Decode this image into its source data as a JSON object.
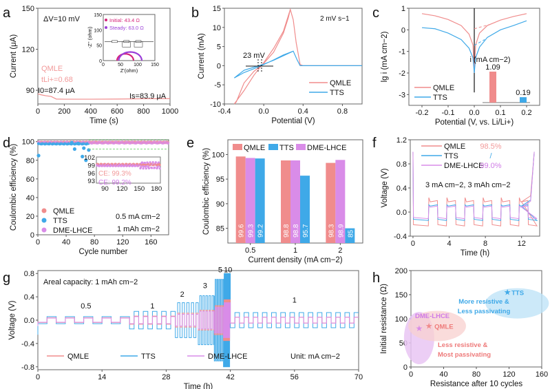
{
  "colors": {
    "qmle": "#f08c8c",
    "tts": "#3fa9e8",
    "dme": "#d98ce8",
    "qmle_text": "#f29a9a",
    "dme_text": "#cf7ae6",
    "axis": "#555555",
    "inset_initial": "#d6247a",
    "inset_steady": "#9b3fd8"
  },
  "chart_data": [
    {
      "panel": "a",
      "type": "line",
      "xlabel": "Time (s)",
      "ylabel": "Current (μA)",
      "xlim": [
        0,
        1000
      ],
      "ylim": [
        80,
        150
      ],
      "xticks": [
        0,
        200,
        400,
        600,
        800,
        1000
      ],
      "yticks": [
        90,
        120,
        150
      ],
      "annotations": [
        "ΔV=10 mV",
        "QMLE",
        "tLi+=0.68",
        "I0=87.4 μA",
        "Is=83.9 μA"
      ],
      "series": [
        {
          "name": "QMLE",
          "x": [
            0,
            20,
            60,
            100,
            140,
            200,
            400,
            600,
            800,
            1000
          ],
          "y": [
            87.4,
            86.8,
            86.0,
            85.5,
            83.6,
            83.5,
            83.5,
            83.6,
            83.8,
            83.9
          ]
        }
      ],
      "inset": {
        "xlabel": "Z'(ohm)",
        "ylabel": "-Z'' (ohm)",
        "xlim": [
          0,
          150
        ],
        "ylim": [
          0,
          150
        ],
        "xticks": [
          0,
          50,
          100,
          150
        ],
        "yticks": [
          0,
          50,
          100,
          150
        ],
        "legend": [
          "Initial: 43.4 Ω",
          "Steady: 63.0 Ω"
        ],
        "circuit_labels": [
          "Rs",
          "Rsei",
          "CPE1",
          "Rct",
          "CPE2",
          "Wo"
        ],
        "series": [
          {
            "name": "Initial",
            "start": 40,
            "end": 88,
            "peak": 22
          },
          {
            "name": "Steady",
            "start": 45,
            "end": 112,
            "peak": 28
          }
        ]
      }
    },
    {
      "panel": "b",
      "type": "line",
      "xlabel": "Potential (V)",
      "ylabel": "Current (mA)",
      "xlim": [
        -0.4,
        1.0
      ],
      "ylim": [
        -10,
        15
      ],
      "xticks": [
        -0.4,
        0.0,
        0.4,
        0.8
      ],
      "yticks": [
        -10,
        -5,
        0,
        5,
        10,
        15
      ],
      "annotations": [
        "2 mV s−1",
        "23 mV"
      ],
      "legend_position": "bottom-right",
      "series": [
        {
          "name": "QMLE",
          "x": [
            1.0,
            0.4,
            0.37,
            0.33,
            0.3,
            0.27,
            0.2,
            0.1,
            0.0,
            -0.1,
            -0.2,
            -0.3,
            -0.28,
            -0.2,
            -0.1,
            0.0,
            0.1,
            0.2,
            0.25,
            0.27
          ],
          "y": [
            0,
            0,
            0.3,
            6,
            12,
            14.7,
            9,
            4.5,
            0.8,
            -2.5,
            -6.5,
            -10,
            -9.5,
            -4.5,
            -1.5,
            0.6,
            3.5,
            8.5,
            12.5,
            14.7
          ]
        },
        {
          "name": "TTS",
          "x": [
            1.0,
            0.37,
            0.34,
            0.3,
            0.2,
            0.1,
            0.0,
            -0.1,
            -0.2,
            -0.3,
            -0.2,
            -0.1,
            0.0,
            0.1,
            0.2,
            0.3
          ],
          "y": [
            0,
            0,
            1.5,
            3.8,
            2.8,
            1.5,
            0.3,
            -0.8,
            -1.8,
            -3.2,
            -1.2,
            -0.4,
            0.4,
            1.4,
            2.6,
            3.8
          ]
        }
      ]
    },
    {
      "panel": "c",
      "type": "line",
      "xlabel": "Potential (V, vs. Li/Li+)",
      "ylabel": "lg i (mA cm−2)",
      "xlim": [
        -0.25,
        0.25
      ],
      "ylim": [
        -3.5,
        1
      ],
      "xticks": [
        -0.2,
        -0.1,
        0.0,
        0.1,
        0.2
      ],
      "yticks": [
        -3,
        -2,
        -1,
        0,
        1
      ],
      "legend_position": "bottom-left",
      "series": [
        {
          "name": "QMLE",
          "x": [
            -0.2,
            -0.15,
            -0.1,
            -0.05,
            -0.02,
            -0.005,
            0,
            0.005,
            0.02,
            0.05,
            0.1,
            0.15,
            0.2
          ],
          "y": [
            0.75,
            0.65,
            0.48,
            0.2,
            -0.2,
            -0.7,
            -2.0,
            -0.7,
            -0.15,
            0.2,
            0.45,
            0.62,
            0.75
          ]
        },
        {
          "name": "TTS",
          "x": [
            -0.2,
            -0.15,
            -0.1,
            -0.05,
            -0.02,
            -0.005,
            0,
            0.005,
            0.02,
            0.05,
            0.1,
            0.15,
            0.2
          ],
          "y": [
            0.1,
            0.05,
            -0.15,
            -0.45,
            -0.85,
            -1.3,
            -2.0,
            -1.3,
            -0.8,
            -0.35,
            0.0,
            0.2,
            0.42
          ]
        }
      ],
      "inset_bar": {
        "title": "i (mA cm−2)",
        "categories": [
          "QMLE",
          "TTS"
        ],
        "values": [
          1.09,
          0.19
        ],
        "value_labels": [
          "1.09",
          "0.19"
        ]
      }
    },
    {
      "panel": "d",
      "type": "scatter",
      "xlabel": "Cycle number",
      "ylabel": "Coulombic efficiency (%)",
      "xlim": [
        0,
        185
      ],
      "ylim": [
        0,
        102
      ],
      "xticks": [
        0,
        40,
        80,
        120,
        160
      ],
      "yticks": [
        0,
        20,
        40,
        60,
        80,
        100
      ],
      "annotations": [
        "0.5 mA cm−2",
        "1 mAh cm−2"
      ],
      "legend": [
        "QMLE",
        "TTS",
        "DME-LHCE"
      ],
      "series": [
        {
          "name": "QMLE",
          "summary": "≈99% through 185 cycles"
        },
        {
          "name": "TTS",
          "x": [
            1,
            48,
            52,
            57,
            63,
            65,
            68,
            72
          ],
          "y": [
            85,
            99,
            92,
            98,
            84,
            93,
            80,
            91
          ],
          "summary": "≈98% until ~72 cycles"
        },
        {
          "name": "DME-LHCE",
          "summary": "≈99% through 185 cycles"
        }
      ],
      "inset": {
        "xticks": [
          90,
          120,
          150,
          180
        ],
        "yticks": [
          93,
          96,
          99,
          102
        ],
        "labels": [
          "CE: 99.3%",
          "CE: 99.2%"
        ]
      }
    },
    {
      "panel": "e",
      "type": "bar",
      "xlabel": "Current density (mA cm−2)",
      "ylabel": "Coulombic efficiency (%)",
      "categories": [
        "0.5",
        "1",
        "2"
      ],
      "ylim": [
        82,
        103
      ],
      "yticks": [
        85,
        90,
        95,
        100
      ],
      "legend_position": "top",
      "series": [
        {
          "name": "QMLE",
          "values": [
            99.6,
            98.8,
            98.3
          ]
        },
        {
          "name": "DME-LHCE",
          "values": [
            99.3,
            98.8,
            98.9
          ]
        },
        {
          "name": "TTS",
          "values": [
            99.2,
            95.7,
            85
          ]
        }
      ],
      "legend": [
        "QMLE",
        "TTS",
        "DME-LHCE"
      ]
    },
    {
      "panel": "f",
      "type": "line",
      "xlabel": "Time  (h)",
      "ylabel": "Voltage (V)",
      "xlim": [
        -0.3,
        14
      ],
      "ylim": [
        -0.4,
        1.2
      ],
      "xticks": [
        0,
        4,
        8,
        12
      ],
      "yticks": [
        -0.4,
        0.0,
        0.4,
        0.8,
        1.2
      ],
      "annotations": [
        "3 mA cm−2, 3 mAh cm−2"
      ],
      "legend": [
        {
          "name": "QMLE",
          "ce": "98.5%"
        },
        {
          "name": "TTS",
          "ce": "/"
        },
        {
          "name": "DME-LHCE",
          "ce": "99.0%"
        }
      ],
      "series": [
        {
          "name": "QMLE",
          "plating": -0.21,
          "stripping": 0.17
        },
        {
          "name": "TTS",
          "plating": -0.12,
          "stripping": 0.1
        },
        {
          "name": "DME-LHCE",
          "plating": -0.09,
          "stripping": 0.08
        }
      ]
    },
    {
      "panel": "g",
      "type": "line",
      "xlabel": "Time (h)",
      "ylabel": "Voltage (V)",
      "xlim": [
        0,
        70
      ],
      "ylim": [
        -0.85,
        0.85
      ],
      "xticks": [
        0,
        14,
        28,
        42,
        56,
        70
      ],
      "yticks": [
        -0.8,
        -0.4,
        0.0,
        0.4,
        0.8
      ],
      "annotations": [
        "Areal capacity: 1 mAh cm−2",
        "Unit: mA cm−2"
      ],
      "rate_labels": [
        {
          "text": "0.5",
          "x": 10.5
        },
        {
          "text": "1",
          "x": 25
        },
        {
          "text": "2",
          "x": 31.5
        },
        {
          "text": "3",
          "x": 36.5
        },
        {
          "text": "5",
          "x": 39.8
        },
        {
          "text": "10",
          "x": 41.5
        },
        {
          "text": "1",
          "x": 56
        }
      ],
      "legend": [
        "QMLE",
        "TTS",
        "DME-LHCE"
      ],
      "segments": [
        {
          "rate": "0.5",
          "t": [
            0,
            20
          ],
          "amp": {
            "QMLE": 0.04,
            "TTS": 0.06,
            "DME-LHCE": 0.035
          }
        },
        {
          "rate": "1",
          "t": [
            20,
            30
          ],
          "amp": {
            "QMLE": 0.07,
            "TTS": 0.15,
            "DME-LHCE": 0.06
          }
        },
        {
          "rate": "2",
          "t": [
            30,
            35
          ],
          "amp": {
            "QMLE": 0.12,
            "TTS": 0.3,
            "DME-LHCE": 0.1
          }
        },
        {
          "rate": "3",
          "t": [
            35,
            38.5
          ],
          "amp": {
            "QMLE": 0.17,
            "TTS": 0.42,
            "DME-LHCE": 0.15
          }
        },
        {
          "rate": "5",
          "t": [
            38.5,
            40.5
          ],
          "amp": {
            "QMLE": 0.25,
            "TTS": 0.7,
            "DME-LHCE": 0.22
          }
        },
        {
          "rate": "10",
          "t": [
            40.5,
            42
          ],
          "amp": {
            "QMLE": 0.35,
            "TTS": 0.8,
            "DME-LHCE": 0.3
          }
        },
        {
          "rate": "1",
          "t": [
            42,
            70
          ],
          "amp": {
            "QMLE": 0.05,
            "TTS": 0.13,
            "DME-LHCE": 0.05
          }
        }
      ]
    },
    {
      "panel": "h",
      "type": "scatter",
      "xlabel": "Resistance after 10 cycles",
      "ylabel": "Initial resistance (Ω)",
      "xlim": [
        0,
        160
      ],
      "ylim": [
        0,
        200
      ],
      "xticks": [
        0,
        40,
        80,
        120,
        160
      ],
      "yticks": [
        0,
        50,
        100,
        150,
        200
      ],
      "points": [
        {
          "name": "DME-LHCE",
          "x": 10,
          "y": 80
        },
        {
          "name": "QMLE",
          "x": 22,
          "y": 85
        },
        {
          "name": "TTS",
          "x": 118,
          "y": 155
        }
      ],
      "annotations": [
        "DME-LHCE",
        "QMLE",
        "TTS",
        "More resistive &",
        "Less passivating",
        "Less resistive &",
        "Most passivating"
      ]
    }
  ],
  "panel_labels": [
    "a",
    "b",
    "c",
    "d",
    "e",
    "f",
    "g",
    "h"
  ]
}
